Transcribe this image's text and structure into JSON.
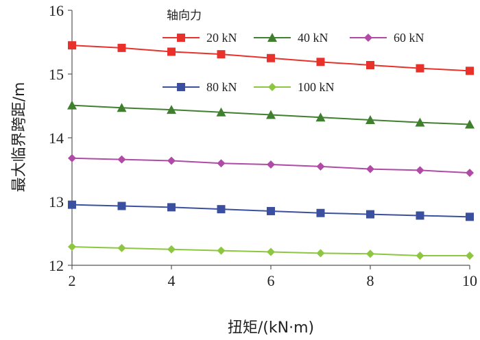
{
  "chart_data": {
    "type": "line",
    "xlabel": "扭矩/(kN·m)",
    "ylabel": "最大临界跨距/m",
    "xlim": [
      2,
      10
    ],
    "ylim": [
      12,
      16
    ],
    "x_ticks": [
      "2",
      "4",
      "6",
      "8",
      "10"
    ],
    "y_ticks": [
      "12",
      "13",
      "14",
      "15",
      "16"
    ],
    "legend_title": "轴向力",
    "legend_position": "top-right",
    "grid": false,
    "x": [
      2,
      3,
      4,
      5,
      6,
      7,
      8,
      9,
      10
    ],
    "series": [
      {
        "name": "20 kN",
        "color": "#e8312a",
        "marker": "square",
        "values": [
          15.45,
          15.41,
          15.35,
          15.31,
          15.25,
          15.19,
          15.14,
          15.09,
          15.05
        ]
      },
      {
        "name": "40 kN",
        "color": "#3f7f2e",
        "marker": "triangle",
        "values": [
          14.51,
          14.47,
          14.44,
          14.4,
          14.36,
          14.32,
          14.28,
          14.24,
          14.21
        ]
      },
      {
        "name": "60 kN",
        "color": "#b04aa6",
        "marker": "diamond",
        "values": [
          13.68,
          13.66,
          13.64,
          13.6,
          13.58,
          13.55,
          13.51,
          13.49,
          13.45
        ]
      },
      {
        "name": "80 kN",
        "color": "#3a4fa0",
        "marker": "square",
        "values": [
          12.95,
          12.93,
          12.91,
          12.88,
          12.85,
          12.82,
          12.8,
          12.78,
          12.76
        ]
      },
      {
        "name": "100 kN",
        "color": "#8dc63f",
        "marker": "diamond",
        "values": [
          12.29,
          12.27,
          12.25,
          12.23,
          12.21,
          12.19,
          12.18,
          12.15,
          12.15
        ]
      }
    ]
  }
}
